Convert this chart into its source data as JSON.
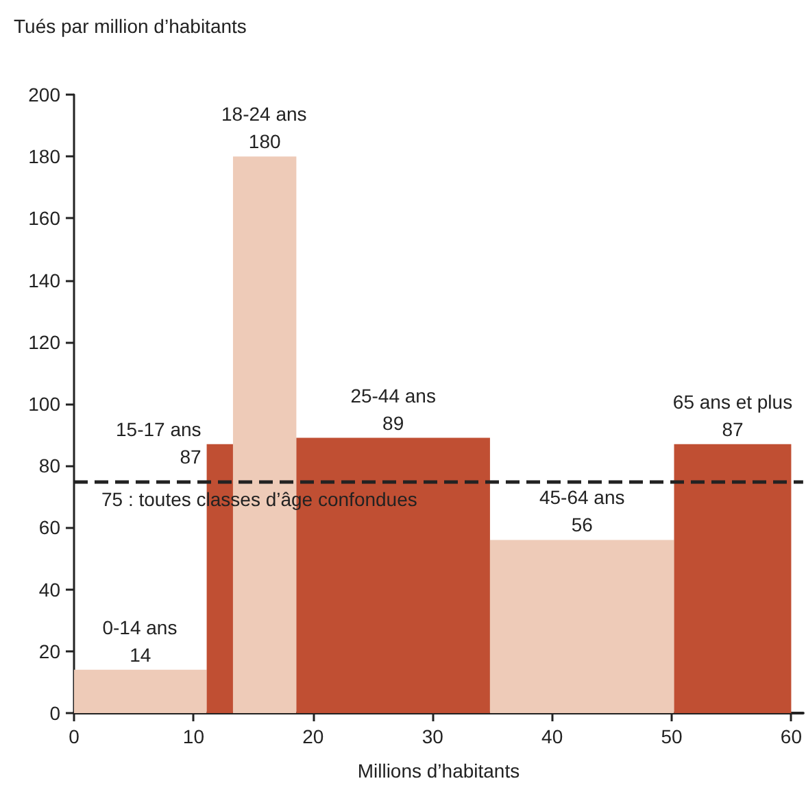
{
  "chart_data": {
    "type": "histogram",
    "ylabel": "Tués par million d’habitants",
    "xlabel": "Millions d’habitants",
    "bins": [
      0,
      11.1,
      13.3,
      18.6,
      34.8,
      50.2,
      60
    ],
    "values": [
      14,
      87,
      180,
      89,
      56,
      87
    ],
    "colors": [
      "#eecbb8",
      "#c04f33",
      "#eecbb8",
      "#c04f33",
      "#eecbb8",
      "#c04f33"
    ],
    "data_labels": true,
    "annotations": [
      {
        "text": "0-14 ans",
        "x": 5.5,
        "y": 14
      },
      {
        "text": "15-17 ans",
        "x": 12.2,
        "y": 87
      },
      {
        "text": "18-24 ans",
        "x": 15.9,
        "y": 180
      },
      {
        "text": "25-44 ans",
        "x": 26.7,
        "y": 89
      },
      {
        "text": "45-64 ans",
        "x": 42.5,
        "y": 56
      },
      {
        "text": "65 ans et plus",
        "x": 55.1,
        "y": 87
      }
    ],
    "ref_lines": [
      {
        "axis": "y",
        "value": 75,
        "label": "75 : toutes classes d’âge confondues",
        "color": "#222222",
        "line_style": "dashed"
      }
    ],
    "xlim": [
      0,
      61
    ],
    "xticks": [
      0,
      10,
      20,
      30,
      40,
      50,
      60
    ],
    "ylim": [
      0,
      200
    ],
    "yticks": [
      0,
      20,
      40,
      60,
      80,
      100,
      120,
      140,
      160,
      180,
      200
    ],
    "grid": false
  }
}
